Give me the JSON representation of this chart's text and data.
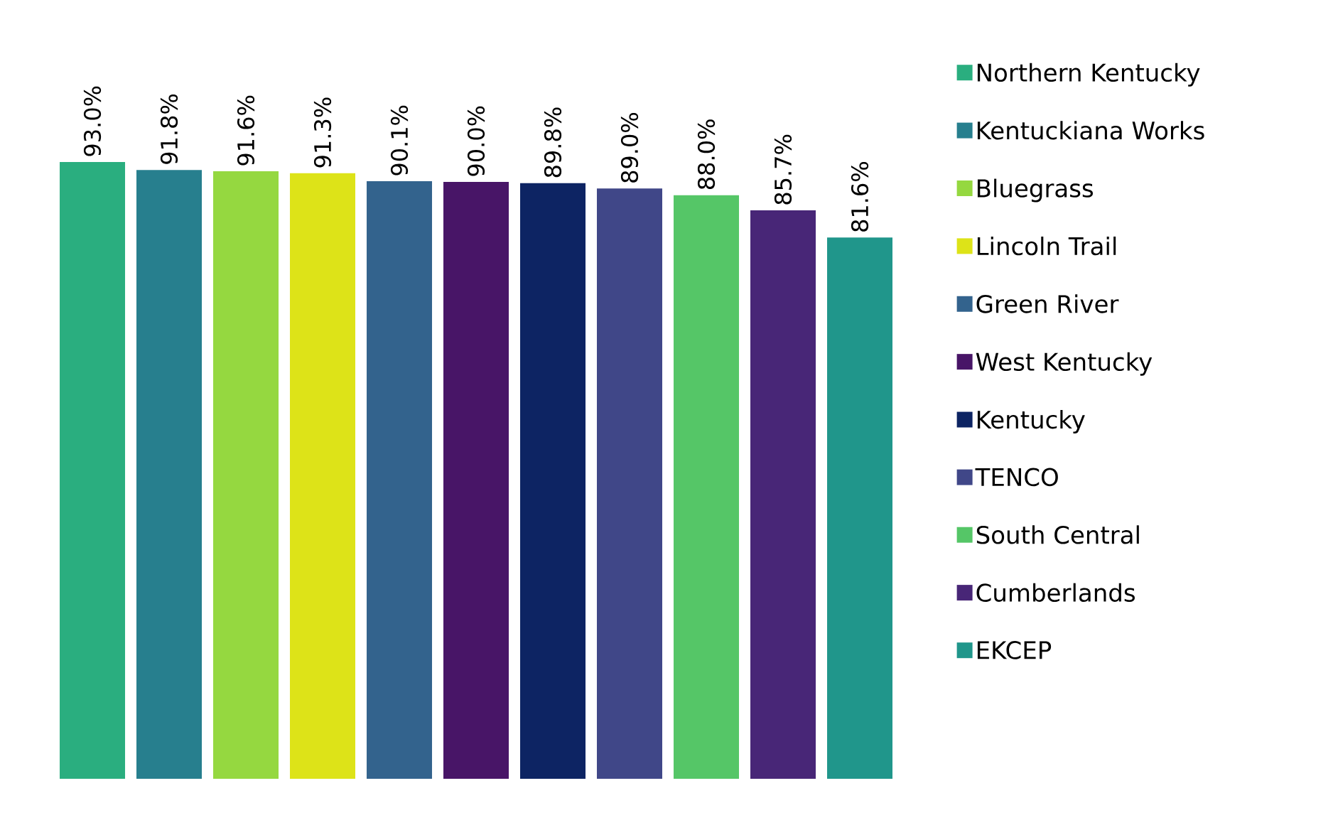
{
  "chart_data": {
    "type": "bar",
    "categories": [
      null
    ],
    "legend": "right",
    "series": [
      {
        "name": "Northern Kentucky",
        "color": "#2aae7f",
        "values": [
          93.0
        ],
        "value_labels": [
          "93.0%"
        ]
      },
      {
        "name": "Kentuckiana Works",
        "color": "#277f8e",
        "values": [
          91.8
        ],
        "value_labels": [
          "91.8%"
        ]
      },
      {
        "name": "Bluegrass",
        "color": "#95d840",
        "values": [
          91.6
        ],
        "value_labels": [
          "91.6%"
        ]
      },
      {
        "name": "Lincoln Trail",
        "color": "#dde318",
        "values": [
          91.3
        ],
        "value_labels": [
          "91.3%"
        ]
      },
      {
        "name": "Green River",
        "color": "#33638d",
        "values": [
          90.1
        ],
        "value_labels": [
          "90.1%"
        ]
      },
      {
        "name": "West Kentucky",
        "color": "#481567",
        "values": [
          90.0
        ],
        "value_labels": [
          "90.0%"
        ]
      },
      {
        "name": "Kentucky",
        "color": "#0d2463",
        "values": [
          89.8
        ],
        "value_labels": [
          "89.8%"
        ]
      },
      {
        "name": "TENCO",
        "color": "#404788",
        "values": [
          89.0
        ],
        "value_labels": [
          "89.0%"
        ]
      },
      {
        "name": "South Central",
        "color": "#55c667",
        "values": [
          88.0
        ],
        "value_labels": [
          "88.0%"
        ]
      },
      {
        "name": "Cumberlands",
        "color": "#482677",
        "values": [
          85.7
        ],
        "value_labels": [
          "85.7%"
        ]
      },
      {
        "name": "EKCEP",
        "color": "#20968b",
        "values": [
          81.6
        ],
        "value_labels": [
          "81.6%"
        ]
      }
    ]
  }
}
